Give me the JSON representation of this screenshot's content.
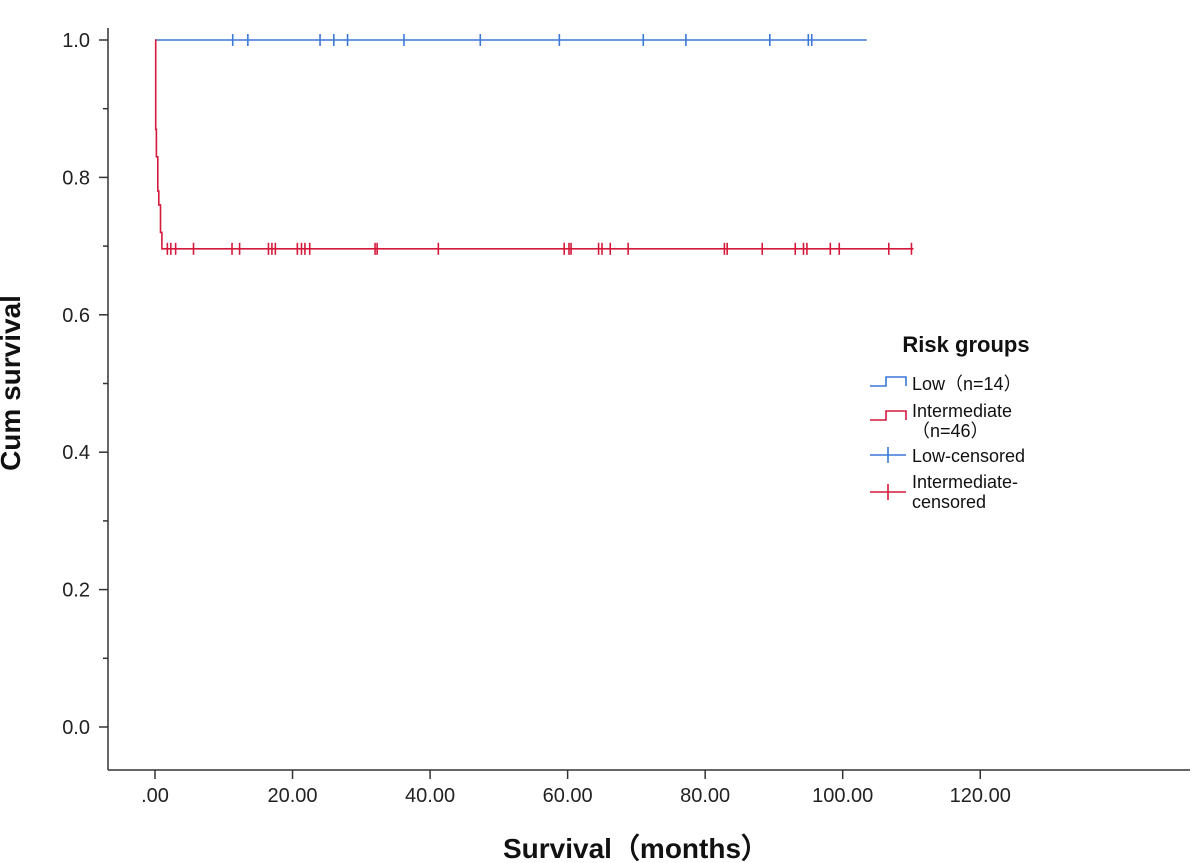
{
  "chart_data": {
    "type": "line",
    "step": true,
    "xlabel": "Survival（months）",
    "ylabel": "Cum survival",
    "xlim": [
      0,
      120
    ],
    "ylim": [
      0,
      1
    ],
    "x_ticks": [
      0,
      20,
      40,
      60,
      80,
      100,
      120
    ],
    "x_tick_labels": [
      ".00",
      "20.00",
      "40.00",
      "60.00",
      "80.00",
      "100.00",
      "120.00"
    ],
    "y_ticks": [
      0,
      0.2,
      0.4,
      0.6,
      0.8,
      1.0
    ],
    "y_tick_labels": [
      "0.0",
      "0.2",
      "0.4",
      "0.6",
      "0.8",
      "1.0"
    ],
    "grid": false,
    "legend_position": "right",
    "legend_title": "Risk groups",
    "colors": {
      "low": "#3a78d8",
      "intermediate": "#d41a3c"
    },
    "series": [
      {
        "name": "Low（n=14）",
        "legend_label": [
          "Low（n=14）"
        ],
        "censored_label": [
          "Low-censored"
        ],
        "color": "#3a78d8",
        "steps": [
          [
            0,
            1.0
          ],
          [
            103.5,
            1.0
          ]
        ],
        "censored": [
          11.3,
          13.5,
          24,
          26,
          28,
          36.2,
          47.3,
          58.8,
          71,
          77.2,
          89.4,
          95,
          95.5
        ]
      },
      {
        "name": "Intermediate（n=46）",
        "legend_label": [
          "Intermediate",
          "（n=46）"
        ],
        "censored_label": [
          "Intermediate-",
          "censored"
        ],
        "color": "#d41a3c",
        "steps": [
          [
            0,
            1.0
          ],
          [
            0.1,
            0.87
          ],
          [
            0.2,
            0.83
          ],
          [
            0.4,
            0.78
          ],
          [
            0.55,
            0.76
          ],
          [
            0.8,
            0.72
          ],
          [
            1.0,
            0.696
          ],
          [
            110.3,
            0.696
          ]
        ],
        "censored": [
          1.8,
          2.3,
          3,
          5.6,
          11.2,
          12.3,
          16.5,
          17,
          17.5,
          20.7,
          21.3,
          21.8,
          22.5,
          32,
          32.3,
          41.2,
          59.5,
          60.2,
          60.5,
          64.5,
          65,
          66.2,
          68.8,
          82.8,
          83.2,
          88.3,
          93.1,
          94.3,
          94.8,
          98.2,
          99.5,
          106.7,
          110
        ]
      }
    ]
  }
}
